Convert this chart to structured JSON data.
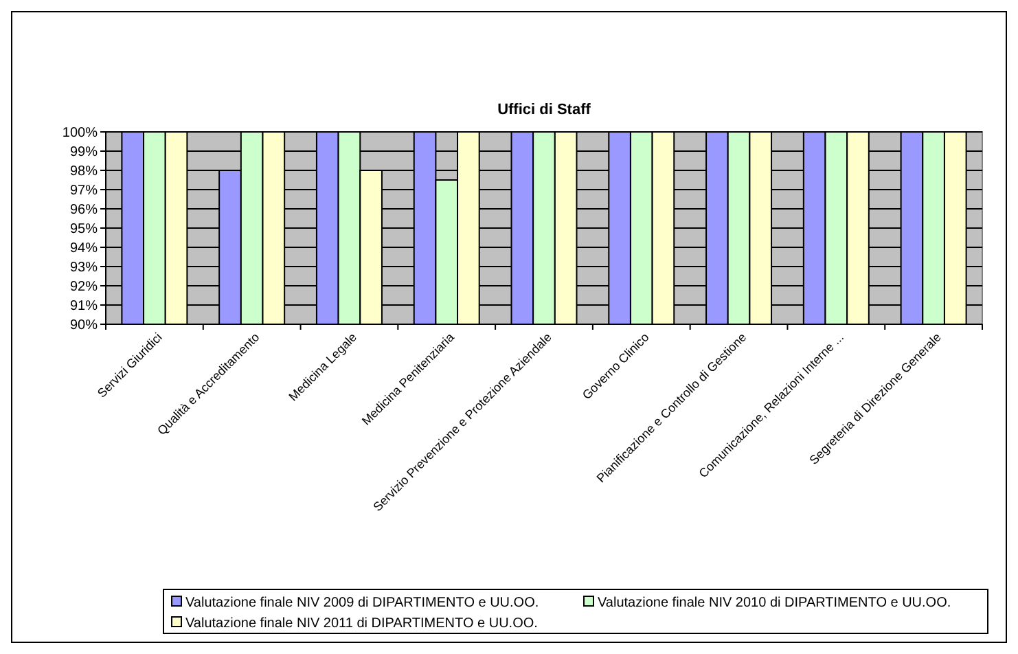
{
  "chart_data": {
    "type": "bar",
    "title": "Uffici di Staff",
    "categories": [
      "Servizi Giuridici",
      "Qualità e Accreditamento",
      "Medicina Legale",
      "Medicina Penitenziaria",
      "Servizio Prevenzione e Protezione Aziendale",
      "Governo Clinico",
      "Pianificazione e Controllo di Gestione",
      "Comunicazione, Relazioni Interne ...",
      "Segreteria di Direzione Generale"
    ],
    "series": [
      {
        "name": "Valutazione finale NIV 2009 di DIPARTIMENTO e UU.OO.",
        "color": "#9999ff",
        "values": [
          100,
          98,
          100,
          100,
          100,
          100,
          100,
          100,
          100
        ]
      },
      {
        "name": "Valutazione finale NIV 2010 di DIPARTIMENTO e UU.OO.",
        "color": "#ccffcc",
        "values": [
          100,
          100,
          100,
          97.5,
          100,
          100,
          100,
          100,
          100
        ]
      },
      {
        "name": "Valutazione finale NIV 2011 di DIPARTIMENTO e UU.OO.",
        "color": "#ffffcc",
        "values": [
          100,
          100,
          98,
          100,
          100,
          100,
          100,
          100,
          100
        ]
      }
    ],
    "ylim": [
      90,
      100
    ],
    "yticks": [
      {
        "value": 90,
        "label": "90%"
      },
      {
        "value": 91,
        "label": "91%"
      },
      {
        "value": 92,
        "label": "92%"
      },
      {
        "value": 93,
        "label": "93%"
      },
      {
        "value": 94,
        "label": "94%"
      },
      {
        "value": 95,
        "label": "95%"
      },
      {
        "value": 96,
        "label": "96%"
      },
      {
        "value": 97,
        "label": "97%"
      },
      {
        "value": 98,
        "label": "98%"
      },
      {
        "value": 99,
        "label": "99%"
      },
      {
        "value": 100,
        "label": "100%"
      }
    ],
    "grid": "y",
    "legend": "bottom"
  }
}
